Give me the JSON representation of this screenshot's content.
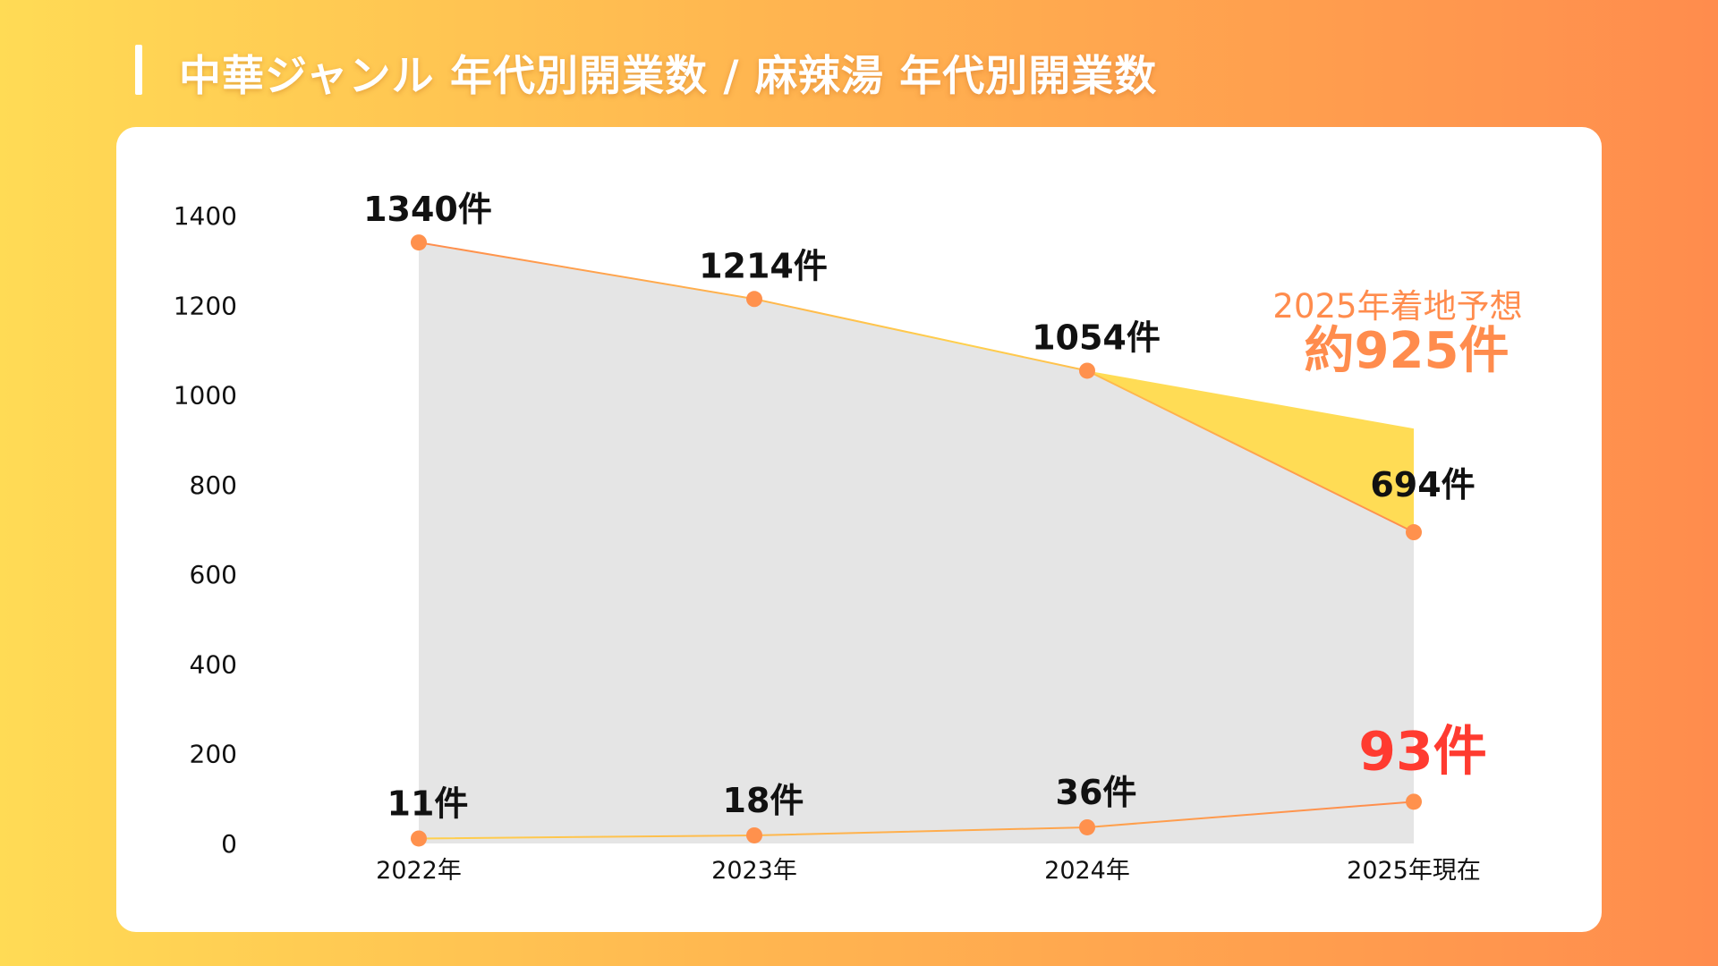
{
  "title": "中華ジャンル 年代別開業数 / 麻辣湯 年代別開業数",
  "colors": {
    "line": "#FF8C4D",
    "line_light": "#FFD04D",
    "marker": "#FF914D",
    "area": "#E5E5E5",
    "forecast_fill": "#FFDC55",
    "highlight": "#FF3B30"
  },
  "chart_data": {
    "type": "area",
    "categories": [
      "2022年",
      "2023年",
      "2024年",
      "2025年現在"
    ],
    "ylim": [
      0,
      1400
    ],
    "yticks": [
      0,
      200,
      400,
      600,
      800,
      1000,
      1200,
      1400
    ],
    "series": [
      {
        "name": "中華ジャンル 年代別開業数",
        "values": [
          1340,
          1214,
          1054,
          694
        ],
        "labels": [
          "1340件",
          "1214件",
          "1054件",
          "694件"
        ]
      },
      {
        "name": "麻辣湯 年代別開業数",
        "values": [
          11,
          18,
          36,
          93
        ],
        "labels": [
          "11件",
          "18件",
          "36件",
          "93件"
        ]
      }
    ],
    "forecast": {
      "value": 925,
      "caption": "2025年着地予想",
      "label": "約925件"
    }
  }
}
